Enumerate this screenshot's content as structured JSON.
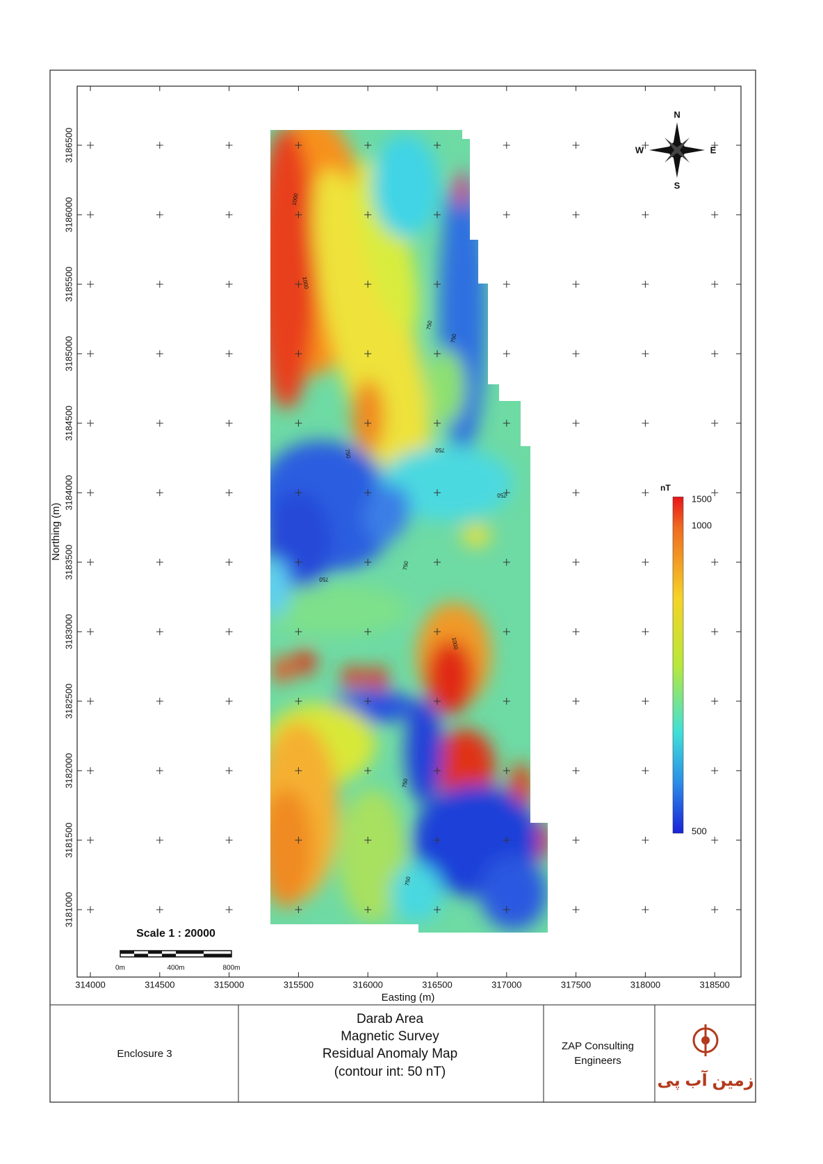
{
  "map": {
    "x_axis": {
      "label": "Easting (m)",
      "ticks": [
        314000,
        314500,
        315000,
        315500,
        316000,
        316500,
        317000,
        317500,
        318000,
        318500
      ]
    },
    "y_axis": {
      "label": "Northing (m)",
      "ticks": [
        3186500,
        3186000,
        3185500,
        3185000,
        3184500,
        3184000,
        3183500,
        3183000,
        3182500,
        3182000,
        3181500,
        3181000
      ]
    },
    "compass": {
      "n": "N",
      "s": "S",
      "e": "E",
      "w": "W"
    },
    "colorbar": {
      "unit": "nT",
      "ticks": [
        1500,
        1000,
        500
      ]
    },
    "scale": {
      "title": "Scale 1 : 20000",
      "labels": [
        "0m",
        "400m",
        "800m"
      ]
    },
    "contour_labels": [
      1000,
      1000,
      750,
      750,
      750,
      750,
      750,
      750,
      750,
      1000,
      750,
      750
    ]
  },
  "title_block": {
    "enclosure": "Enclosure 3",
    "title_lines": [
      "Darab Area",
      "Magnetic Survey",
      "Residual Anomaly  Map",
      "(contour int: 50 nT)"
    ],
    "company_lines": [
      "ZAP Consulting",
      "Engineers"
    ],
    "logo_text": "زمین آب پی"
  }
}
